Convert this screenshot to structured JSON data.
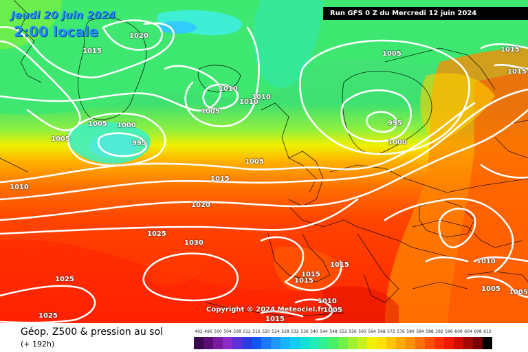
{
  "header": {
    "date": "Jeudi 20 juin 2024",
    "time": "2:00 locale",
    "run": "Run GFS 0 Z du Mercredi 12 juin 2024"
  },
  "copyright": "Copyright © 2024 Meteociel.fr",
  "footer": {
    "title": "Géop. Z500 & pression au sol",
    "subtitle": "(+ 192h)"
  },
  "isobar_labels": [
    "1020",
    "1015",
    "1005",
    "1000",
    "995",
    "1005",
    "1010",
    "1010",
    "1010",
    "1005",
    "1005",
    "995",
    "1000",
    "1015",
    "1015",
    "1015",
    "1005",
    "1020",
    "1025",
    "1030",
    "1025",
    "1025",
    "1015",
    "1015",
    "1015",
    "1010",
    "1005",
    "1015",
    "1010",
    "1005",
    "1005",
    "1010"
  ],
  "legend": {
    "values": [
      "492",
      "496",
      "500",
      "504",
      "508",
      "512",
      "516",
      "520",
      "524",
      "528",
      "532",
      "536",
      "540",
      "544",
      "548",
      "552",
      "556",
      "560",
      "564",
      "568",
      "572",
      "576",
      "580",
      "584",
      "588",
      "592",
      "596",
      "600",
      "604",
      "608",
      "612"
    ],
    "colors": [
      "#3b0a4d",
      "#5a0f78",
      "#7a1aa0",
      "#8e2bc8",
      "#5a30d8",
      "#2a3ce0",
      "#1055f0",
      "#1a78ff",
      "#1e96ff",
      "#18b4ff",
      "#10ccf0",
      "#14e0d8",
      "#20ecb8",
      "#30f090",
      "#48f068",
      "#70f048",
      "#a0f030",
      "#c8f020",
      "#f0f000",
      "#ffe000",
      "#ffc400",
      "#ffaa00",
      "#ff9000",
      "#ff7000",
      "#ff5000",
      "#ff3000",
      "#f01800",
      "#d00c00",
      "#a00800",
      "#780000",
      "#000000"
    ]
  }
}
